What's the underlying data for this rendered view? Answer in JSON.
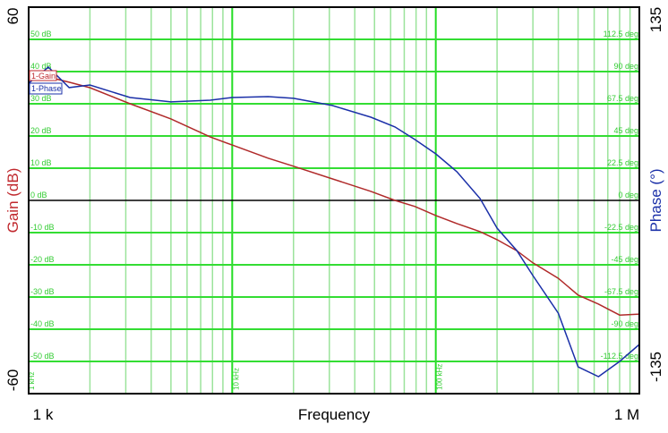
{
  "chart_data": {
    "type": "line",
    "title": "",
    "xlabel": "Frequency",
    "xscale": "log",
    "xlim": [
      1000,
      1000000
    ],
    "x_tick_labels": [
      "1 k",
      "1 M"
    ],
    "x_decade_labels": [
      "1 kHz",
      "10 kHz",
      "100 kHz"
    ],
    "y_left": {
      "label": "Gain (dB)",
      "range": [
        -60,
        60
      ],
      "range_labels": [
        "60",
        "-60"
      ],
      "grid_labels": [
        "50 dB",
        "40 dB",
        "30 dB",
        "20 dB",
        "10 dB",
        "0 dB",
        "-10 dB",
        "-20 dB",
        "-30 dB",
        "-40 dB",
        "-50 dB"
      ],
      "color": "#c0282d"
    },
    "y_right": {
      "label": "Phase (°)",
      "range": [
        -135,
        135
      ],
      "range_labels": [
        "135",
        "-135"
      ],
      "grid_labels": [
        "112.5 deg",
        "90 deg",
        "67.5 deg",
        "45 deg",
        "22.5 deg",
        "0 deg",
        "-22.5 deg",
        "-45 deg",
        "-67.5 deg",
        "-90 deg",
        "-112.5 deg"
      ],
      "color": "#1a2fa8"
    },
    "grid": true,
    "legend_tags": [
      "1-Gain",
      "1-Phase"
    ],
    "x": [
      1000,
      1250,
      1580,
      2000,
      3150,
      5000,
      7800,
      10000,
      15000,
      20000,
      31000,
      48000,
      63000,
      79000,
      100000,
      127000,
      165000,
      200000,
      250000,
      300000,
      400000,
      500000,
      630000,
      800000,
      1000000
    ],
    "series": [
      {
        "name": "1-Gain",
        "axis": "left",
        "color": "#b02a2a",
        "values": [
          38.9,
          38.3,
          36.7,
          35.0,
          30.0,
          25.3,
          19.7,
          17.2,
          13.1,
          10.6,
          6.7,
          2.8,
          0.0,
          -1.9,
          -4.7,
          -7.2,
          -9.7,
          -12.2,
          -15.6,
          -19.4,
          -24.2,
          -29.4,
          -32.2,
          -35.6,
          -35.3
        ]
      },
      {
        "name": "1-Phase",
        "axis": "right",
        "color": "#1a2fa8",
        "values": [
          81.9,
          93.1,
          78.8,
          80.6,
          71.9,
          68.8,
          70.0,
          71.9,
          72.5,
          71.3,
          66.3,
          58.1,
          51.3,
          42.5,
          32.5,
          20.0,
          1.3,
          -19.4,
          -35.0,
          -52.5,
          -78.8,
          -116.3,
          -123.1,
          -112.5,
          -100.6
        ]
      }
    ]
  }
}
